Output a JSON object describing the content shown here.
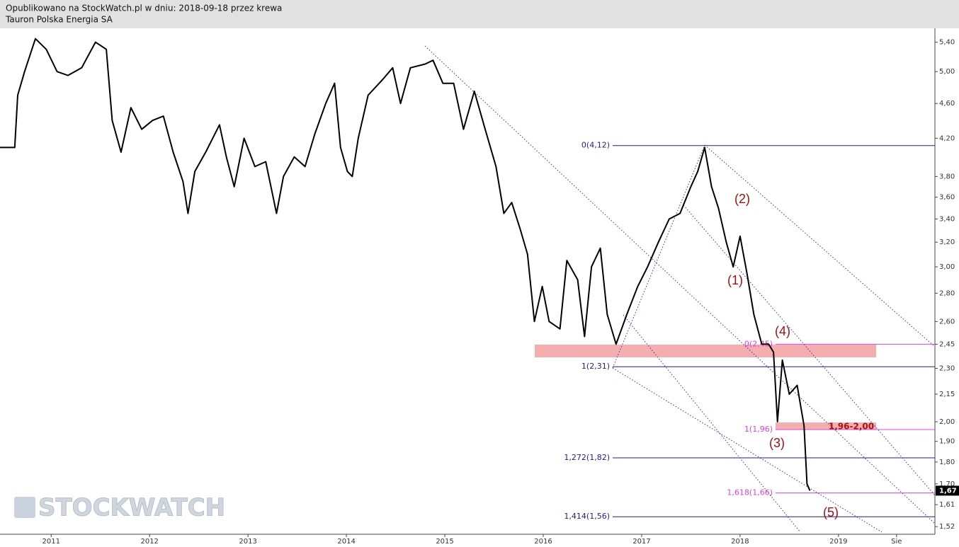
{
  "chart_data": {
    "type": "line",
    "title": "Opublikowano na StockWatch.pl w dniu: 2018-09-18 przez krewa",
    "subtitle": "Tauron Polska Energia SA",
    "watermark": "STOCKWATCH",
    "color": "#000000",
    "log_scale": true,
    "grid": false,
    "x": [
      2010.48,
      2010.63,
      2010.66,
      2010.73,
      2010.84,
      2010.95,
      2011.06,
      2011.17,
      2011.31,
      2011.45,
      2011.56,
      2011.62,
      2011.71,
      2011.81,
      2011.92,
      2012.03,
      2012.14,
      2012.24,
      2012.34,
      2012.39,
      2012.46,
      2012.57,
      2012.71,
      2012.78,
      2012.86,
      2012.96,
      2013.07,
      2013.18,
      2013.29,
      2013.36,
      2013.47,
      2013.58,
      2013.68,
      2013.79,
      2013.88,
      2013.94,
      2014.01,
      2014.06,
      2014.12,
      2014.22,
      2014.37,
      2014.47,
      2014.55,
      2014.65,
      2014.8,
      2014.88,
      2014.98,
      2015.09,
      2015.19,
      2015.3,
      2015.41,
      2015.52,
      2015.6,
      2015.68,
      2015.77,
      2015.84,
      2015.91,
      2015.99,
      2016.06,
      2016.17,
      2016.24,
      2016.35,
      2016.42,
      2016.49,
      2016.58,
      2016.65,
      2016.74,
      2016.85,
      2016.96,
      2017.06,
      2017.17,
      2017.28,
      2017.39,
      2017.5,
      2017.57,
      2017.64,
      2017.71,
      2017.78,
      2017.86,
      2017.93,
      2018.0,
      2018.07,
      2018.14,
      2018.22,
      2018.29,
      2018.34,
      2018.38,
      2018.43,
      2018.5,
      2018.58,
      2018.65,
      2018.68,
      2018.71
    ],
    "values": [
      4.1,
      4.1,
      4.7,
      5.0,
      5.45,
      5.3,
      5.0,
      4.95,
      5.05,
      5.4,
      5.3,
      4.4,
      4.05,
      4.55,
      4.3,
      4.4,
      4.45,
      4.05,
      3.75,
      3.45,
      3.85,
      4.05,
      4.35,
      4.0,
      3.7,
      4.2,
      3.9,
      3.95,
      3.45,
      3.8,
      4.0,
      3.9,
      4.25,
      4.6,
      4.85,
      4.1,
      3.85,
      3.8,
      4.2,
      4.7,
      4.9,
      5.05,
      4.6,
      5.05,
      5.1,
      5.15,
      4.85,
      4.85,
      4.3,
      4.75,
      4.3,
      3.9,
      3.45,
      3.55,
      3.3,
      3.1,
      2.6,
      2.85,
      2.6,
      2.55,
      3.05,
      2.9,
      2.5,
      3.0,
      3.15,
      2.65,
      2.45,
      2.65,
      2.85,
      3.0,
      3.2,
      3.4,
      3.45,
      3.7,
      3.85,
      4.1,
      3.7,
      3.5,
      3.2,
      3.0,
      3.25,
      2.95,
      2.65,
      2.45,
      2.45,
      2.4,
      2.0,
      2.35,
      2.15,
      2.2,
      1.98,
      1.7,
      1.67
    ],
    "xlim": [
      2010.48,
      2019.98
    ],
    "xticks": [
      2011,
      2012,
      2013,
      2014,
      2015,
      2016,
      2017,
      2018,
      2019,
      {
        "value": 2019.59,
        "label": "Sie"
      }
    ],
    "ylim": [
      1.49,
      5.6
    ],
    "yticks": [
      {
        "value": 5.4,
        "label": "5,40"
      },
      {
        "value": 5.0,
        "label": "5,00"
      },
      {
        "value": 4.6,
        "label": "4,60"
      },
      {
        "value": 4.2,
        "label": "4,20"
      },
      {
        "value": 3.8,
        "label": "3,80"
      },
      {
        "value": 3.6,
        "label": "3,60"
      },
      {
        "value": 3.4,
        "label": "3,40"
      },
      {
        "value": 3.2,
        "label": "3,20"
      },
      {
        "value": 3.0,
        "label": "3,00"
      },
      {
        "value": 2.8,
        "label": "2,80"
      },
      {
        "value": 2.6,
        "label": "2,60"
      },
      {
        "value": 2.45,
        "label": "2,45"
      },
      {
        "value": 2.3,
        "label": "2,30"
      },
      {
        "value": 2.15,
        "label": "2,15"
      },
      {
        "value": 2.0,
        "label": "2,00"
      },
      {
        "value": 1.9,
        "label": "1,90"
      },
      {
        "value": 1.8,
        "label": "1,80"
      },
      {
        "value": 1.7,
        "label": "1,70"
      },
      {
        "value": 1.61,
        "label": "1,61"
      },
      {
        "value": 1.52,
        "label": "1,52"
      }
    ],
    "last_price": {
      "value": 1.67,
      "label": "1,67"
    },
    "levels": [
      {
        "label": "0(4,12)",
        "value": 4.12,
        "color": "#1c1c9c"
      },
      {
        "label": "1(2,31)",
        "value": 2.31,
        "color": "#1c1c9c"
      },
      {
        "label": "1,272(1,82)",
        "value": 1.82,
        "color": "#1c1c9c"
      },
      {
        "label": "1,414(1,56)",
        "value": 1.56,
        "color": "#1c1c9c"
      },
      {
        "label": "0(2,45)",
        "value": 2.45,
        "color": "#e040e0"
      },
      {
        "label": "1(1,96)",
        "value": 1.96,
        "color": "#e040e0"
      },
      {
        "label": "1,618(1,66)",
        "value": 1.66,
        "color": "#e040e0"
      }
    ],
    "zone_label": "1,96-2,00",
    "annotations": [
      "(1)",
      "(2)",
      "(3)",
      "(4)",
      "(5)"
    ]
  }
}
